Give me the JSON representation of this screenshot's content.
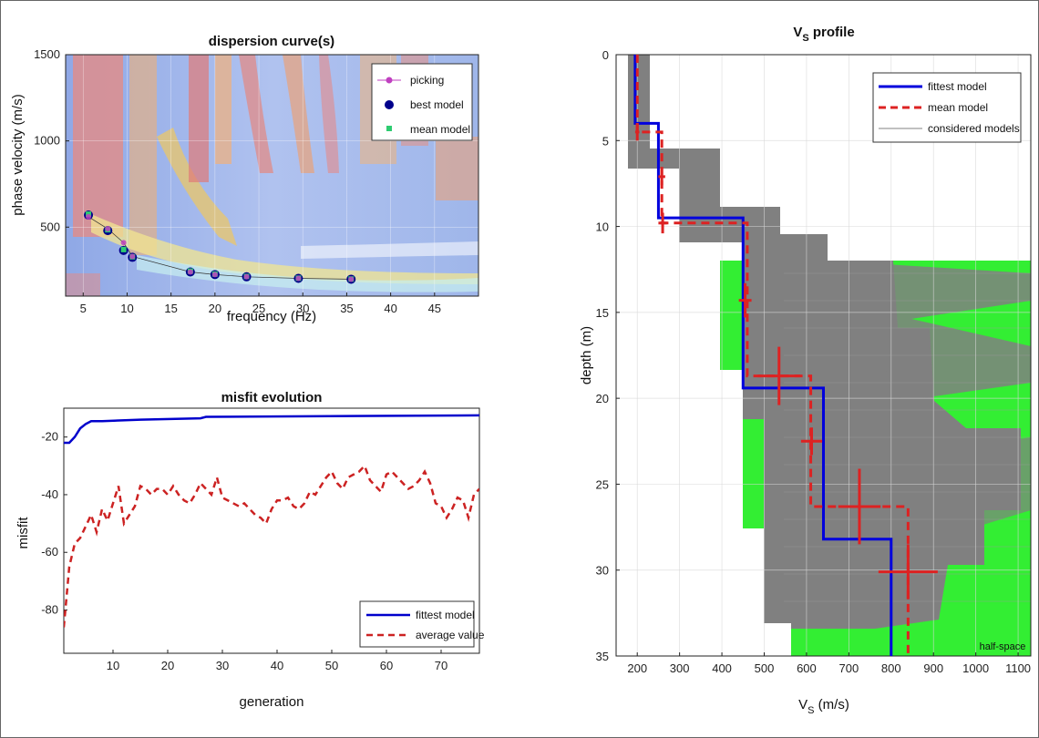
{
  "chart_data": [
    {
      "type": "scatter",
      "panel": "dispersion",
      "title": "dispersion curve(s)",
      "xlabel": "frequency (Hz)",
      "ylabel": "phase velocity (m/s)",
      "xlim": [
        3,
        50
      ],
      "ylim": [
        100,
        1500
      ],
      "xticks": [
        5,
        10,
        15,
        20,
        25,
        30,
        35,
        40,
        45
      ],
      "yticks": [
        500,
        1000,
        1500
      ],
      "grid": true,
      "background": "phase-velocity spectrum heatmap",
      "legend_position": "top-right",
      "series": [
        {
          "name": "picking",
          "marker": "circle",
          "color": "#c040c0",
          "x": [
            5.6,
            7.8,
            9.6,
            10.6,
            17.2,
            20.0,
            23.6,
            29.5,
            35.5
          ],
          "y": [
            560,
            490,
            410,
            330,
            240,
            225,
            212,
            203,
            198
          ]
        },
        {
          "name": "best model",
          "marker": "filled-circle",
          "color": "#00008b",
          "x": [
            5.6,
            7.8,
            9.6,
            10.6,
            17.2,
            20.0,
            23.6,
            29.5,
            35.5
          ],
          "y": [
            570,
            480,
            365,
            325,
            240,
            225,
            212,
            203,
            198
          ]
        },
        {
          "name": "mean model",
          "marker": "square",
          "color": "#2ecc71",
          "x": [
            5.6,
            7.8,
            9.6,
            10.6,
            17.2,
            20.0,
            23.6,
            29.5,
            35.5
          ],
          "y": [
            575,
            485,
            370,
            328,
            245,
            228,
            214,
            204,
            199
          ]
        }
      ]
    },
    {
      "type": "line",
      "panel": "misfit",
      "title": "misfit evolution",
      "xlabel": "generation",
      "ylabel": "misfit",
      "xlim": [
        1,
        77
      ],
      "ylim": [
        -95,
        -10
      ],
      "xticks": [
        10,
        20,
        30,
        40,
        50,
        60,
        70
      ],
      "yticks": [
        -80,
        -60,
        -40,
        -20
      ],
      "grid": false,
      "legend_position": "bottom-right",
      "series": [
        {
          "name": "fittest model",
          "color": "#0000cc",
          "style": "solid",
          "x": [
            1,
            2,
            3,
            4,
            5,
            6,
            8,
            15,
            26,
            27,
            77
          ],
          "y": [
            -22,
            -22,
            -20,
            -17,
            -15.5,
            -14.5,
            -14.5,
            -14,
            -13.5,
            -13,
            -12.5
          ]
        },
        {
          "name": "average value",
          "color": "#cc2222",
          "style": "dashed",
          "x": [
            1,
            2,
            3,
            4,
            5,
            6,
            7,
            8,
            9,
            10,
            11,
            12,
            13,
            14,
            15,
            16,
            17,
            18,
            19,
            20,
            21,
            22,
            23,
            24,
            25,
            26,
            27,
            28,
            29,
            30,
            31,
            32,
            33,
            34,
            35,
            36,
            37,
            38,
            39,
            40,
            41,
            42,
            43,
            44,
            45,
            46,
            47,
            48,
            49,
            50,
            51,
            52,
            53,
            54,
            55,
            56,
            57,
            58,
            59,
            60,
            61,
            62,
            63,
            64,
            65,
            66,
            67,
            68,
            69,
            70,
            71,
            72,
            73,
            74,
            75,
            76,
            77
          ],
          "y": [
            -86,
            -65,
            -57,
            -55,
            -51,
            -47,
            -53,
            -45,
            -49,
            -43,
            -37,
            -50,
            -47,
            -44,
            -37,
            -38,
            -40,
            -38,
            -38,
            -40,
            -37,
            -40,
            -42,
            -43,
            -40,
            -36,
            -38,
            -40,
            -34,
            -41,
            -42,
            -43,
            -44,
            -43,
            -45,
            -47,
            -48,
            -50,
            -45,
            -42,
            -42,
            -41,
            -44,
            -45,
            -43,
            -39,
            -40,
            -37,
            -34,
            -32,
            -36,
            -38,
            -34,
            -33,
            -32,
            -30,
            -35,
            -37,
            -39,
            -33,
            -32,
            -34,
            -36,
            -38,
            -37,
            -35,
            -32,
            -36,
            -43,
            -44,
            -48,
            -45,
            -41,
            -42,
            -48,
            -40,
            -38
          ]
        }
      ]
    },
    {
      "type": "line",
      "panel": "vs",
      "title": "V",
      "title_sub": "S",
      "title_rest": " profile",
      "xlabel": "V",
      "xlabel_sub": "S",
      "xlabel_rest": " (m/s)",
      "ylabel": "depth  (m)",
      "xlim": [
        150,
        1130
      ],
      "ylim": [
        0,
        35
      ],
      "y_reversed": true,
      "xticks": [
        200,
        300,
        400,
        500,
        600,
        700,
        800,
        900,
        1000,
        1100
      ],
      "xtick_labels": [
        "200",
        "300",
        "400",
        "500",
        "600",
        "700",
        "800",
        "900",
        "1000",
        "1100"
      ],
      "yticks": [
        0,
        5,
        10,
        15,
        20,
        25,
        30,
        35
      ],
      "grid": true,
      "legend_position": "top-right",
      "annotation": "half-space",
      "considered_models_color": "#808080",
      "envelope_color": "#33ee33",
      "series": [
        {
          "name": "fittest model",
          "color": "#0000dd",
          "style": "solid",
          "x": [
            195,
            195,
            250,
            250,
            450,
            450,
            640,
            640,
            800,
            800
          ],
          "y": [
            0,
            4.0,
            4.0,
            9.5,
            9.5,
            19.4,
            19.4,
            28.2,
            28.2,
            35
          ]
        },
        {
          "name": "mean model",
          "color": "#dd2222",
          "style": "dashed",
          "x": [
            200,
            200,
            258,
            258,
            460,
            460,
            610,
            610,
            840,
            840
          ],
          "y": [
            0,
            4.5,
            4.5,
            9.8,
            9.8,
            18.7,
            18.7,
            26.3,
            26.3,
            35
          ]
        },
        {
          "name": "considered models",
          "color": "#808080",
          "style": "thin"
        }
      ],
      "error_bars": [
        {
          "vs": 200,
          "depth": 4.5,
          "vs_err": 5,
          "depth_err": 0.5
        },
        {
          "vs": 258,
          "depth": 7.1,
          "vs_err": 8,
          "depth_err": 0.5
        },
        {
          "vs": 260,
          "depth": 9.8,
          "vs_err": 10,
          "depth_err": 0.6
        },
        {
          "vs": 455,
          "depth": 14.3,
          "vs_err": 15,
          "depth_err": 1.0
        },
        {
          "vs": 535,
          "depth": 18.7,
          "vs_err": 50,
          "depth_err": 1.7
        },
        {
          "vs": 612,
          "depth": 22.5,
          "vs_err": 25,
          "depth_err": 0.8
        },
        {
          "vs": 725,
          "depth": 26.3,
          "vs_err": 50,
          "depth_err": 2.2
        },
        {
          "vs": 840,
          "depth": 30.1,
          "vs_err": 70,
          "depth_err": 1.6
        }
      ]
    }
  ]
}
